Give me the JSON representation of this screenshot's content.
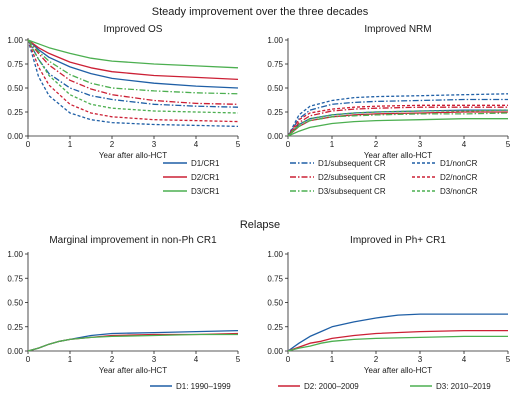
{
  "figure": {
    "top_heading": "Steady improvement over the three decades",
    "mid_heading": "Relapse",
    "xlabel": "Year after allo-HCT",
    "yticks": [
      "0.00",
      "0.25",
      "0.50",
      "0.75",
      "1.00"
    ],
    "xticks": [
      "0",
      "1",
      "2",
      "3",
      "4",
      "5"
    ]
  },
  "legend_mid": [
    {
      "label": "D1/CR1",
      "color": "#1f5fa6",
      "dash": "solid"
    },
    {
      "label": "D2/CR1",
      "color": "#cc2035",
      "dash": "solid"
    },
    {
      "label": "D3/CR1",
      "color": "#4caf50",
      "dash": "solid"
    },
    {
      "label": "D1/subsequent CR",
      "color": "#1f5fa6",
      "dash": "dashdot"
    },
    {
      "label": "D2/subsequent CR",
      "color": "#cc2035",
      "dash": "dashdot"
    },
    {
      "label": "D3/subsequent CR",
      "color": "#4caf50",
      "dash": "dashdot"
    },
    {
      "label": "D1/nonCR",
      "color": "#1f5fa6",
      "dash": "dashed"
    },
    {
      "label": "D2/nonCR",
      "color": "#cc2035",
      "dash": "dashed"
    },
    {
      "label": "D3/nonCR",
      "color": "#4caf50",
      "dash": "dashed"
    }
  ],
  "legend_bottom": [
    {
      "label": "D1: 1990–1999",
      "color": "#1f5fa6"
    },
    {
      "label": "D2: 2000–2009",
      "color": "#cc2035"
    },
    {
      "label": "D3: 2010–2019",
      "color": "#4caf50"
    }
  ],
  "chart_data": [
    {
      "type": "line",
      "title": "Improved OS",
      "xlabel": "Year after allo-HCT",
      "ylabel": "",
      "xlim": [
        0,
        5
      ],
      "ylim": [
        0,
        1
      ],
      "series": [
        {
          "name": "D1/CR1",
          "x": [
            0,
            0.25,
            0.5,
            1,
            1.5,
            2,
            3,
            4,
            5
          ],
          "y": [
            1,
            0.9,
            0.82,
            0.72,
            0.65,
            0.6,
            0.55,
            0.52,
            0.5
          ]
        },
        {
          "name": "D2/CR1",
          "x": [
            0,
            0.25,
            0.5,
            1,
            1.5,
            2,
            3,
            4,
            5
          ],
          "y": [
            1,
            0.92,
            0.86,
            0.77,
            0.71,
            0.67,
            0.63,
            0.61,
            0.59
          ]
        },
        {
          "name": "D3/CR1",
          "x": [
            0,
            0.25,
            0.5,
            1,
            1.5,
            2,
            3,
            4,
            5
          ],
          "y": [
            1,
            0.96,
            0.92,
            0.86,
            0.81,
            0.78,
            0.75,
            0.73,
            0.71
          ]
        },
        {
          "name": "D1/subsequent CR",
          "x": [
            0,
            0.25,
            0.5,
            1,
            1.5,
            2,
            3,
            4,
            5
          ],
          "y": [
            1,
            0.8,
            0.65,
            0.5,
            0.42,
            0.38,
            0.33,
            0.31,
            0.3
          ]
        },
        {
          "name": "D2/subsequent CR",
          "x": [
            0,
            0.25,
            0.5,
            1,
            1.5,
            2,
            3,
            4,
            5
          ],
          "y": [
            1,
            0.86,
            0.74,
            0.58,
            0.49,
            0.43,
            0.37,
            0.34,
            0.33
          ]
        },
        {
          "name": "D3/subsequent CR",
          "x": [
            0,
            0.25,
            0.5,
            1,
            1.5,
            2,
            3,
            4,
            5
          ],
          "y": [
            1,
            0.88,
            0.78,
            0.64,
            0.55,
            0.5,
            0.47,
            0.45,
            0.44
          ]
        },
        {
          "name": "D1/nonCR",
          "x": [
            0,
            0.25,
            0.5,
            1,
            1.5,
            2,
            3,
            4,
            5
          ],
          "y": [
            1,
            0.62,
            0.42,
            0.24,
            0.17,
            0.14,
            0.12,
            0.11,
            0.1
          ]
        },
        {
          "name": "D2/nonCR",
          "x": [
            0,
            0.25,
            0.5,
            1,
            1.5,
            2,
            3,
            4,
            5
          ],
          "y": [
            1,
            0.72,
            0.53,
            0.33,
            0.24,
            0.2,
            0.17,
            0.16,
            0.15
          ]
        },
        {
          "name": "D3/nonCR",
          "x": [
            0,
            0.25,
            0.5,
            1,
            1.5,
            2,
            3,
            4,
            5
          ],
          "y": [
            1,
            0.8,
            0.63,
            0.43,
            0.33,
            0.29,
            0.26,
            0.25,
            0.24
          ]
        }
      ]
    },
    {
      "type": "line",
      "title": "Improved NRM",
      "xlabel": "Year after allo-HCT",
      "ylabel": "",
      "xlim": [
        0,
        5
      ],
      "ylim": [
        0,
        1
      ],
      "series": [
        {
          "name": "D1/CR1",
          "x": [
            0,
            0.25,
            0.5,
            1,
            1.5,
            2,
            3,
            4,
            5
          ],
          "y": [
            0,
            0.12,
            0.18,
            0.22,
            0.24,
            0.25,
            0.26,
            0.27,
            0.27
          ]
        },
        {
          "name": "D2/CR1",
          "x": [
            0,
            0.25,
            0.5,
            1,
            1.5,
            2,
            3,
            4,
            5
          ],
          "y": [
            0,
            0.1,
            0.16,
            0.2,
            0.22,
            0.23,
            0.24,
            0.25,
            0.25
          ]
        },
        {
          "name": "D3/CR1",
          "x": [
            0,
            0.25,
            0.5,
            1,
            1.5,
            2,
            3,
            4,
            5
          ],
          "y": [
            0,
            0.05,
            0.09,
            0.13,
            0.15,
            0.16,
            0.17,
            0.18,
            0.18
          ]
        },
        {
          "name": "D1/subsequent CR",
          "x": [
            0,
            0.25,
            0.5,
            1,
            1.5,
            2,
            3,
            4,
            5
          ],
          "y": [
            0,
            0.18,
            0.27,
            0.33,
            0.35,
            0.36,
            0.37,
            0.38,
            0.38
          ]
        },
        {
          "name": "D2/subsequent CR",
          "x": [
            0,
            0.25,
            0.5,
            1,
            1.5,
            2,
            3,
            4,
            5
          ],
          "y": [
            0,
            0.14,
            0.21,
            0.26,
            0.28,
            0.29,
            0.3,
            0.3,
            0.3
          ]
        },
        {
          "name": "D3/subsequent CR",
          "x": [
            0,
            0.25,
            0.5,
            1,
            1.5,
            2,
            3,
            4,
            5
          ],
          "y": [
            0,
            0.1,
            0.16,
            0.2,
            0.21,
            0.22,
            0.23,
            0.23,
            0.24
          ]
        },
        {
          "name": "D1/nonCR",
          "x": [
            0,
            0.25,
            0.5,
            1,
            1.5,
            2,
            3,
            4,
            5
          ],
          "y": [
            0,
            0.22,
            0.31,
            0.37,
            0.4,
            0.41,
            0.42,
            0.43,
            0.44
          ]
        },
        {
          "name": "D2/nonCR",
          "x": [
            0,
            0.25,
            0.5,
            1,
            1.5,
            2,
            3,
            4,
            5
          ],
          "y": [
            0,
            0.17,
            0.24,
            0.28,
            0.3,
            0.31,
            0.32,
            0.32,
            0.32
          ]
        },
        {
          "name": "D3/nonCR",
          "x": [
            0,
            0.25,
            0.5,
            1,
            1.5,
            2,
            3,
            4,
            5
          ],
          "y": [
            0,
            0.12,
            0.18,
            0.22,
            0.24,
            0.25,
            0.26,
            0.26,
            0.27
          ]
        }
      ]
    },
    {
      "type": "line",
      "title": "Marginal improvement in non-Ph CR1",
      "xlabel": "Year after allo-HCT",
      "ylabel": "",
      "xlim": [
        0,
        5
      ],
      "ylim": [
        0,
        1
      ],
      "series": [
        {
          "name": "D1: 1990–1999",
          "x": [
            0,
            0.25,
            0.5,
            0.75,
            1,
            1.5,
            2,
            3,
            4,
            5
          ],
          "y": [
            0,
            0.03,
            0.07,
            0.1,
            0.12,
            0.16,
            0.18,
            0.19,
            0.2,
            0.21
          ]
        },
        {
          "name": "D2: 2000–2009",
          "x": [
            0,
            0.25,
            0.5,
            0.75,
            1,
            1.5,
            2,
            3,
            4,
            5
          ],
          "y": [
            0,
            0.03,
            0.07,
            0.1,
            0.12,
            0.14,
            0.16,
            0.17,
            0.17,
            0.18
          ]
        },
        {
          "name": "D3: 2010–2019",
          "x": [
            0,
            0.25,
            0.5,
            0.75,
            1,
            1.5,
            2,
            3,
            4,
            5
          ],
          "y": [
            0,
            0.03,
            0.07,
            0.1,
            0.12,
            0.14,
            0.15,
            0.16,
            0.17,
            0.17
          ]
        }
      ]
    },
    {
      "type": "line",
      "title": "Improved in Ph+ CR1",
      "xlabel": "Year after allo-HCT",
      "ylabel": "",
      "xlim": [
        0,
        5
      ],
      "ylim": [
        0,
        1
      ],
      "series": [
        {
          "name": "D1: 1990–1999",
          "x": [
            0,
            0.25,
            0.5,
            0.75,
            1,
            1.5,
            2,
            2.5,
            3,
            4,
            5
          ],
          "y": [
            0,
            0.08,
            0.15,
            0.2,
            0.25,
            0.3,
            0.34,
            0.37,
            0.38,
            0.38,
            0.38
          ]
        },
        {
          "name": "D2: 2000–2009",
          "x": [
            0,
            0.25,
            0.5,
            0.75,
            1,
            1.5,
            2,
            3,
            4,
            5
          ],
          "y": [
            0,
            0.04,
            0.08,
            0.1,
            0.13,
            0.16,
            0.18,
            0.2,
            0.21,
            0.21
          ]
        },
        {
          "name": "D3: 2010–2019",
          "x": [
            0,
            0.25,
            0.5,
            0.75,
            1,
            1.5,
            2,
            3,
            4,
            5
          ],
          "y": [
            0,
            0.03,
            0.05,
            0.08,
            0.1,
            0.12,
            0.13,
            0.14,
            0.15,
            0.15
          ]
        }
      ]
    }
  ]
}
